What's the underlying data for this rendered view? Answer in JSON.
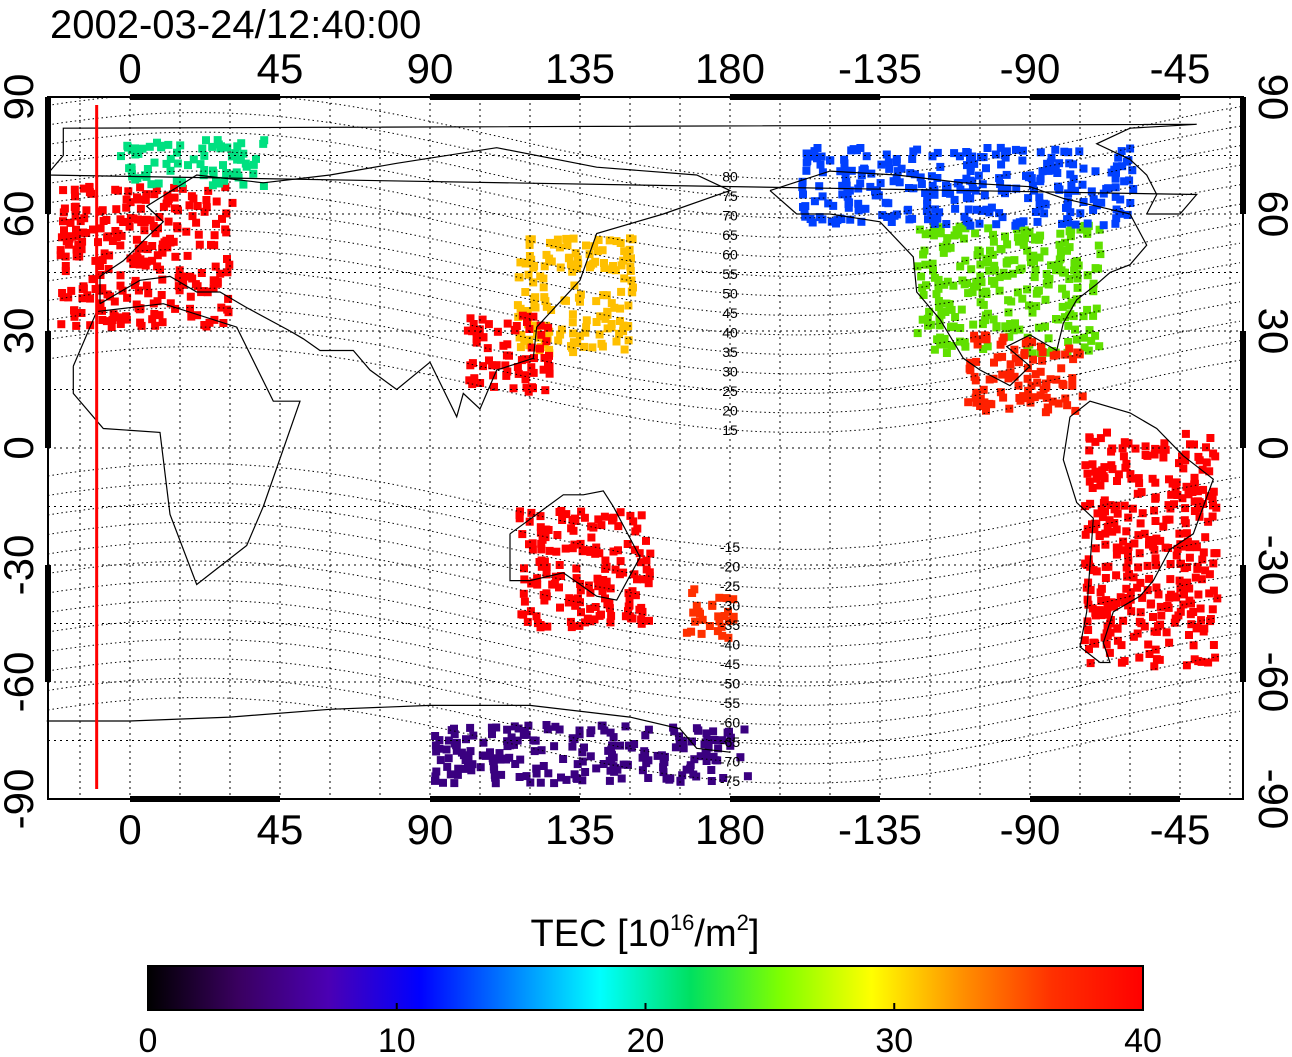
{
  "title": "2002-03-24/12:40:00",
  "map": {
    "lon_ticks_top": [
      "0",
      "45",
      "90",
      "135",
      "180",
      "-135",
      "-90",
      "-45"
    ],
    "lon_ticks_bottom": [
      "0",
      "45",
      "90",
      "135",
      "180",
      "-135",
      "-90",
      "-45"
    ],
    "lat_ticks_left": [
      "90",
      "60",
      "30",
      "0",
      "-30",
      "-60",
      "-90"
    ],
    "lat_ticks_right": [
      "90",
      "60",
      "30",
      "0",
      "-30",
      "-60",
      "-90"
    ],
    "contour_labels": [
      "80",
      "75",
      "70",
      "65",
      "60",
      "55",
      "50",
      "45",
      "40",
      "35",
      "30",
      "25",
      "20",
      "15",
      "-15",
      "-20",
      "-25",
      "-30",
      "-35",
      "-40",
      "-45",
      "-50",
      "-55",
      "-60",
      "-65",
      "-70",
      "-75"
    ],
    "marker_line_lon": -10
  },
  "colorbar": {
    "label_main": "TEC  [10",
    "label_sup1": "16",
    "label_mid": "/m",
    "label_sup2": "2",
    "label_end": "]",
    "ticks": [
      "0",
      "10",
      "20",
      "30",
      "40"
    ],
    "colors": [
      "#000000",
      "#3a0060",
      "#4b00b4",
      "#0000ff",
      "#0080ff",
      "#00ffff",
      "#00e060",
      "#80ff00",
      "#ffff00",
      "#ff9000",
      "#ff3000",
      "#ff0000"
    ]
  },
  "tec_regions": [
    {
      "name": "europe",
      "lon": [
        -22,
        30
      ],
      "lat": [
        32,
        68
      ],
      "color": "#ff0000"
    },
    {
      "name": "north-atlantic",
      "lon": [
        -5,
        40
      ],
      "lat": [
        68,
        80
      ],
      "color": "#00e080"
    },
    {
      "name": "east-asia",
      "lon": [
        115,
        150
      ],
      "lat": [
        25,
        55
      ],
      "color": "#ffc000"
    },
    {
      "name": "china",
      "lon": [
        100,
        125
      ],
      "lat": [
        15,
        35
      ],
      "color": "#ff0000"
    },
    {
      "name": "north-america",
      "lon": [
        -125,
        -70
      ],
      "lat": [
        25,
        58
      ],
      "color": "#60e000"
    },
    {
      "name": "canada",
      "lon": [
        -160,
        -60
      ],
      "lat": [
        58,
        78
      ],
      "color": "#0040ff"
    },
    {
      "name": "mexico",
      "lon": [
        -110,
        -75
      ],
      "lat": [
        10,
        30
      ],
      "color": "#ff2000"
    },
    {
      "name": "south-america",
      "lon": [
        -75,
        -35
      ],
      "lat": [
        -55,
        5
      ],
      "color": "#ff0000"
    },
    {
      "name": "australia",
      "lon": [
        115,
        155
      ],
      "lat": [
        -45,
        -15
      ],
      "color": "#ff0000"
    },
    {
      "name": "new-zealand",
      "lon": [
        165,
        180
      ],
      "lat": [
        -48,
        -35
      ],
      "color": "#ff3000"
    },
    {
      "name": "antarctic",
      "lon": [
        90,
        185
      ],
      "lat": [
        -85,
        -70
      ],
      "color": "#3a0080"
    }
  ]
}
